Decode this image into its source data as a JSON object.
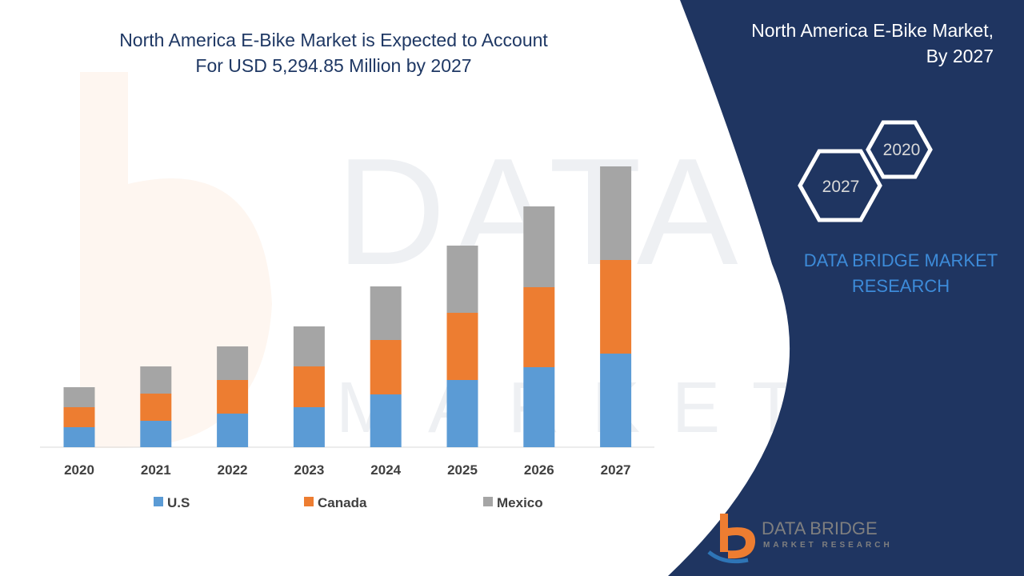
{
  "header": {
    "title_line1": "North America E-Bike Market is Expected to Account",
    "title_line2": "For USD 5,294.85 Million by 2027"
  },
  "panel": {
    "title_line1": "North America E-Bike Market,",
    "title_line2": "By 2027",
    "hex_front": "2027",
    "hex_back": "2020",
    "brand_line1": "DATA BRIDGE MARKET",
    "brand_line2": "RESEARCH"
  },
  "logo": {
    "name": "DATA BRIDGE",
    "tagline": "MARKET RESEARCH"
  },
  "colors": {
    "us": "#5b9bd5",
    "canada": "#ed7d31",
    "mexico": "#a5a5a5",
    "panel": "#1f3561",
    "title": "#1f3864"
  },
  "chart_data": {
    "type": "bar",
    "stacked": true,
    "categories": [
      "2020",
      "2021",
      "2022",
      "2023",
      "2024",
      "2025",
      "2026",
      "2027"
    ],
    "series": [
      {
        "name": "U.S",
        "values": [
          25,
          33,
          42,
          50,
          66,
          84,
          100,
          117
        ]
      },
      {
        "name": "Canada",
        "values": [
          25,
          34,
          42,
          51,
          68,
          84,
          100,
          117
        ]
      },
      {
        "name": "Mexico",
        "values": [
          25,
          34,
          42,
          50,
          67,
          84,
          101,
          117
        ]
      }
    ],
    "ylim": [
      0,
      360
    ],
    "grid": false,
    "legend": "bottom"
  }
}
